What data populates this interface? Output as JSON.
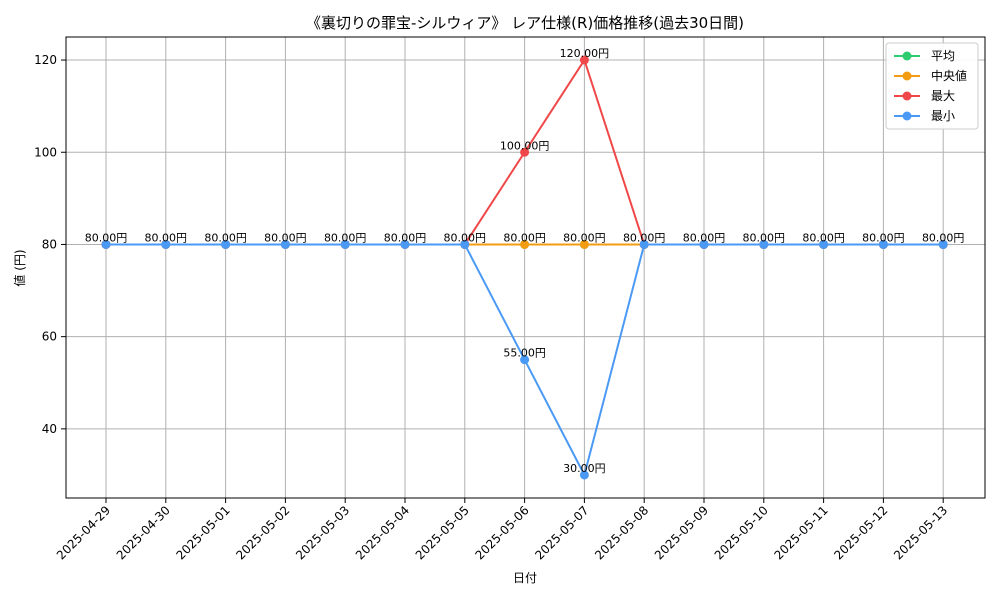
{
  "chart_data": {
    "type": "line",
    "title": "《裏切りの罪宝-シルウィア》 レア仕様(R)価格推移(過去30日間)",
    "xlabel": "日付",
    "ylabel": "値 (円)",
    "categories": [
      "2025-04-29",
      "2025-04-30",
      "2025-05-01",
      "2025-05-02",
      "2025-05-03",
      "2025-05-04",
      "2025-05-05",
      "2025-05-06",
      "2025-05-07",
      "2025-05-08",
      "2025-05-09",
      "2025-05-10",
      "2025-05-11",
      "2025-05-12",
      "2025-05-13"
    ],
    "ylim": [
      25,
      125
    ],
    "yticks": [
      40,
      60,
      80,
      100,
      120
    ],
    "grid": true,
    "legend_position": "top-right",
    "series": [
      {
        "name": "平均",
        "color": "#2ecc71",
        "values": [
          80,
          80,
          80,
          80,
          80,
          80,
          80,
          80,
          80,
          80,
          80,
          80,
          80,
          80,
          80
        ]
      },
      {
        "name": "中央値",
        "color": "#f39c12",
        "values": [
          80,
          80,
          80,
          80,
          80,
          80,
          80,
          80,
          80,
          80,
          80,
          80,
          80,
          80,
          80
        ]
      },
      {
        "name": "最大",
        "color": "#f04848",
        "values": [
          80,
          80,
          80,
          80,
          80,
          80,
          80,
          100,
          120,
          80,
          80,
          80,
          80,
          80,
          80
        ]
      },
      {
        "name": "最小",
        "color": "#4a9af5",
        "values": [
          80,
          80,
          80,
          80,
          80,
          80,
          80,
          55,
          30,
          80,
          80,
          80,
          80,
          80,
          80
        ]
      }
    ],
    "annotations": [
      {
        "x": "2025-04-29",
        "y": 80,
        "label": "80.00円"
      },
      {
        "x": "2025-04-30",
        "y": 80,
        "label": "80.00円"
      },
      {
        "x": "2025-05-01",
        "y": 80,
        "label": "80.00円"
      },
      {
        "x": "2025-05-02",
        "y": 80,
        "label": "80.00円"
      },
      {
        "x": "2025-05-03",
        "y": 80,
        "label": "80.00円"
      },
      {
        "x": "2025-05-04",
        "y": 80,
        "label": "80.00円"
      },
      {
        "x": "2025-05-05",
        "y": 80,
        "label": "80.00円"
      },
      {
        "x": "2025-05-06",
        "y": 80,
        "label": "80.00円"
      },
      {
        "x": "2025-05-06",
        "y": 100,
        "label": "100.00円"
      },
      {
        "x": "2025-05-06",
        "y": 55,
        "label": "55.00円"
      },
      {
        "x": "2025-05-07",
        "y": 80,
        "label": "80.00円"
      },
      {
        "x": "2025-05-07",
        "y": 120,
        "label": "120.00円"
      },
      {
        "x": "2025-05-07",
        "y": 30,
        "label": "30.00円"
      },
      {
        "x": "2025-05-08",
        "y": 80,
        "label": "80.00円"
      },
      {
        "x": "2025-05-09",
        "y": 80,
        "label": "80.00円"
      },
      {
        "x": "2025-05-10",
        "y": 80,
        "label": "80.00円"
      },
      {
        "x": "2025-05-11",
        "y": 80,
        "label": "80.00円"
      },
      {
        "x": "2025-05-12",
        "y": 80,
        "label": "80.00円"
      },
      {
        "x": "2025-05-13",
        "y": 80,
        "label": "80.00円"
      }
    ]
  }
}
